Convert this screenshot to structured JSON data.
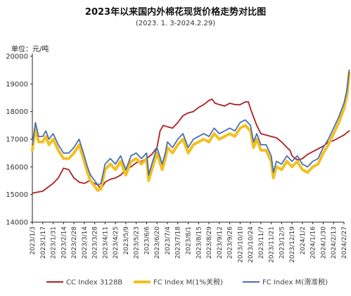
{
  "chart_data": {
    "type": "line",
    "title": "2023年以来国内外棉花现货价格走势对比图",
    "subtitle": "(2023. 1. 3-2024.2.29)",
    "ylabel": "单位：元/吨",
    "xlabel": "",
    "ylim": [
      14000,
      20000
    ],
    "yticks": [
      14000,
      15000,
      16000,
      17000,
      18000,
      19000,
      20000
    ],
    "grid": false,
    "legend_position": "bottom",
    "x_tick_labels": [
      "2023/1/3",
      "2023/1/17",
      "2023/1/31",
      "2023/2/14",
      "2023/2/28",
      "2023/3/14",
      "2023/3/28",
      "2023/4/11",
      "2023/4/25",
      "2023/5/9",
      "2023/5/23",
      "2023/6/6",
      "2023/6/20",
      "2023/7/4",
      "2023/7/18",
      "2023/8/1",
      "2023/8/15",
      "2023/8/29",
      "2023/9/12",
      "2023/9/26",
      "2023/10/10",
      "2023/10/24",
      "2023/11/7",
      "2023/11/21",
      "2023/12/5",
      "2023/12/19",
      "2024/1/2",
      "2024/1/16",
      "2024/1/30",
      "2024/2/13",
      "2024/2/27"
    ],
    "series": [
      {
        "name": "CC Index 3128B",
        "color": "#b01e23",
        "points": [
          [
            0,
            15050
          ],
          [
            1,
            15120
          ],
          [
            2,
            15400
          ],
          [
            2.5,
            15600
          ],
          [
            3,
            15950
          ],
          [
            3.5,
            15900
          ],
          [
            4,
            15600
          ],
          [
            4.5,
            15450
          ],
          [
            5,
            15400
          ],
          [
            5.5,
            15500
          ],
          [
            6,
            15400
          ],
          [
            6.3,
            15350
          ],
          [
            6.6,
            15200
          ],
          [
            7,
            15450
          ],
          [
            7.5,
            15550
          ],
          [
            8,
            15600
          ],
          [
            8.5,
            15700
          ],
          [
            9,
            15900
          ],
          [
            9.5,
            16000
          ],
          [
            10,
            16150
          ],
          [
            10.5,
            16200
          ],
          [
            11,
            16300
          ],
          [
            11.5,
            16450
          ],
          [
            12,
            16700
          ],
          [
            12.3,
            17300
          ],
          [
            12.6,
            17500
          ],
          [
            13,
            17450
          ],
          [
            13.5,
            17400
          ],
          [
            14,
            17600
          ],
          [
            14.5,
            17850
          ],
          [
            15,
            17950
          ],
          [
            15.5,
            18000
          ],
          [
            16,
            18150
          ],
          [
            16.5,
            18250
          ],
          [
            17,
            18400
          ],
          [
            17.3,
            18450
          ],
          [
            17.6,
            18300
          ],
          [
            18,
            18250
          ],
          [
            18.5,
            18200
          ],
          [
            19,
            18300
          ],
          [
            19.5,
            18250
          ],
          [
            20,
            18250
          ],
          [
            20.5,
            18350
          ],
          [
            20.8,
            18350
          ],
          [
            21,
            18100
          ],
          [
            21.3,
            17800
          ],
          [
            21.6,
            17500
          ],
          [
            22,
            17200
          ],
          [
            22.5,
            17150
          ],
          [
            23,
            17100
          ],
          [
            23.5,
            17050
          ],
          [
            24,
            16900
          ],
          [
            24.5,
            16700
          ],
          [
            24.8,
            16600
          ],
          [
            25,
            16400
          ],
          [
            25.3,
            16300
          ],
          [
            25.6,
            16250
          ],
          [
            26,
            16300
          ],
          [
            26.5,
            16450
          ],
          [
            27,
            16550
          ],
          [
            27.5,
            16650
          ],
          [
            28,
            16750
          ],
          [
            28.5,
            16900
          ],
          [
            29,
            16950
          ],
          [
            29.5,
            17050
          ],
          [
            30,
            17150
          ],
          [
            30.5,
            17300
          ]
        ]
      },
      {
        "name": "FC Index M(1%关税)",
        "color": "#f2c020",
        "points": [
          [
            0,
            16600
          ],
          [
            0.3,
            17400
          ],
          [
            0.6,
            16900
          ],
          [
            1,
            16900
          ],
          [
            1.3,
            17100
          ],
          [
            1.6,
            16800
          ],
          [
            2,
            17000
          ],
          [
            2.5,
            16600
          ],
          [
            3,
            16300
          ],
          [
            3.5,
            16300
          ],
          [
            4,
            16500
          ],
          [
            4.5,
            16800
          ],
          [
            5,
            16200
          ],
          [
            5.3,
            15800
          ],
          [
            5.6,
            15500
          ],
          [
            6,
            15300
          ],
          [
            6.3,
            15150
          ],
          [
            6.6,
            15200
          ],
          [
            7,
            15900
          ],
          [
            7.5,
            16100
          ],
          [
            8,
            15900
          ],
          [
            8.5,
            16200
          ],
          [
            9,
            15700
          ],
          [
            9.5,
            16200
          ],
          [
            10,
            16300
          ],
          [
            10.5,
            16100
          ],
          [
            11,
            16300
          ],
          [
            11.2,
            15500
          ],
          [
            11.5,
            15900
          ],
          [
            12,
            16500
          ],
          [
            12.5,
            15900
          ],
          [
            12.8,
            16300
          ],
          [
            13,
            16700
          ],
          [
            13.5,
            16500
          ],
          [
            14,
            16800
          ],
          [
            14.5,
            17000
          ],
          [
            15,
            16500
          ],
          [
            15.5,
            16800
          ],
          [
            16,
            16900
          ],
          [
            16.5,
            17000
          ],
          [
            17,
            16900
          ],
          [
            17.5,
            17200
          ],
          [
            18,
            17000
          ],
          [
            18.5,
            17100
          ],
          [
            19,
            17200
          ],
          [
            19.5,
            17100
          ],
          [
            20,
            17400
          ],
          [
            20.5,
            17500
          ],
          [
            21,
            17300
          ],
          [
            21.3,
            16700
          ],
          [
            21.6,
            17000
          ],
          [
            22,
            16600
          ],
          [
            22.5,
            16600
          ],
          [
            23,
            16200
          ],
          [
            23.2,
            15600
          ],
          [
            23.5,
            16000
          ],
          [
            24,
            15900
          ],
          [
            24.5,
            16200
          ],
          [
            25,
            16000
          ],
          [
            25.5,
            16200
          ],
          [
            26,
            15900
          ],
          [
            26.5,
            15800
          ],
          [
            27,
            16000
          ],
          [
            27.5,
            16100
          ],
          [
            28,
            16500
          ],
          [
            28.5,
            16800
          ],
          [
            29,
            17200
          ],
          [
            29.5,
            17600
          ],
          [
            29.8,
            17900
          ],
          [
            30,
            18100
          ],
          [
            30.3,
            18600
          ],
          [
            30.5,
            19400
          ]
        ]
      },
      {
        "name": "FC Index M(滑准税)",
        "color": "#4a6fb0",
        "points": [
          [
            0,
            16800
          ],
          [
            0.3,
            17600
          ],
          [
            0.6,
            17100
          ],
          [
            1,
            17100
          ],
          [
            1.3,
            17300
          ],
          [
            1.6,
            17000
          ],
          [
            2,
            17200
          ],
          [
            2.5,
            16800
          ],
          [
            3,
            16500
          ],
          [
            3.5,
            16500
          ],
          [
            4,
            16700
          ],
          [
            4.5,
            17000
          ],
          [
            5,
            16400
          ],
          [
            5.3,
            16000
          ],
          [
            5.6,
            15700
          ],
          [
            6,
            15500
          ],
          [
            6.3,
            15350
          ],
          [
            6.6,
            15400
          ],
          [
            7,
            16100
          ],
          [
            7.5,
            16300
          ],
          [
            8,
            16100
          ],
          [
            8.5,
            16400
          ],
          [
            9,
            15900
          ],
          [
            9.5,
            16400
          ],
          [
            10,
            16500
          ],
          [
            10.5,
            16300
          ],
          [
            11,
            16500
          ],
          [
            11.2,
            15700
          ],
          [
            11.5,
            16100
          ],
          [
            12,
            16700
          ],
          [
            12.5,
            16100
          ],
          [
            12.8,
            16500
          ],
          [
            13,
            16900
          ],
          [
            13.5,
            16700
          ],
          [
            14,
            17000
          ],
          [
            14.5,
            17200
          ],
          [
            15,
            16700
          ],
          [
            15.5,
            17000
          ],
          [
            16,
            17100
          ],
          [
            16.5,
            17200
          ],
          [
            17,
            17100
          ],
          [
            17.5,
            17400
          ],
          [
            18,
            17200
          ],
          [
            18.5,
            17300
          ],
          [
            19,
            17400
          ],
          [
            19.5,
            17300
          ],
          [
            20,
            17600
          ],
          [
            20.5,
            17700
          ],
          [
            21,
            17500
          ],
          [
            21.3,
            16900
          ],
          [
            21.6,
            17200
          ],
          [
            22,
            16800
          ],
          [
            22.5,
            16800
          ],
          [
            23,
            16400
          ],
          [
            23.2,
            15800
          ],
          [
            23.5,
            16200
          ],
          [
            24,
            16100
          ],
          [
            24.5,
            16400
          ],
          [
            25,
            16200
          ],
          [
            25.5,
            16400
          ],
          [
            26,
            16100
          ],
          [
            26.5,
            16000
          ],
          [
            27,
            16200
          ],
          [
            27.5,
            16300
          ],
          [
            28,
            16700
          ],
          [
            28.5,
            17000
          ],
          [
            29,
            17400
          ],
          [
            29.5,
            17800
          ],
          [
            29.8,
            18100
          ],
          [
            30,
            18300
          ],
          [
            30.3,
            18800
          ],
          [
            30.5,
            19500
          ]
        ]
      }
    ]
  }
}
